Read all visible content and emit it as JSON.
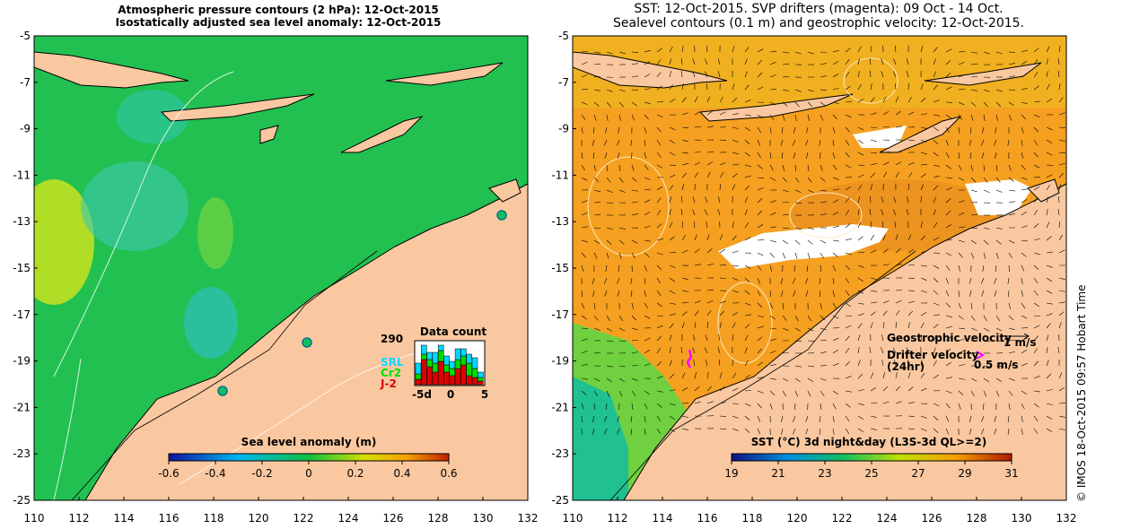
{
  "left_panel": {
    "title_line1": "Atmospheric pressure contours (2 hPa): 12-Oct-2015",
    "title_line2": "Isostatically adjusted sea level anomaly: 12-Oct-2015",
    "colorbar_label": "Sea level anomaly (m)",
    "colorbar_ticks": [
      "-0.6",
      "-0.4",
      "-0.2",
      "0",
      "0.2",
      "0.4",
      "0.6"
    ],
    "lat_ticks": [
      "-5",
      "-7",
      "-9",
      "-11",
      "-13",
      "-15",
      "-17",
      "-19",
      "-21",
      "-23",
      "-25"
    ],
    "lon_ticks": [
      "110",
      "112",
      "114",
      "116",
      "118",
      "120",
      "122",
      "124",
      "126",
      "128",
      "130",
      "132"
    ],
    "inset": {
      "title": "Data count",
      "max_count": "290",
      "satellites": [
        {
          "name": "SRL",
          "color": "#00d8ff"
        },
        {
          "name": "Cr2",
          "color": "#00dd00"
        },
        {
          "name": "J-2",
          "color": "#dd0000"
        }
      ],
      "x_ticks": [
        "-5d",
        "0",
        "5"
      ]
    }
  },
  "right_panel": {
    "title_line1": "SST: 12-Oct-2015. SVP drifters (magenta): 09 Oct - 14 Oct.",
    "title_line2": "Sealevel contours (0.1 m) and geostrophic velocity: 12-Oct-2015.",
    "colorbar_label": "SST (°C) 3d night&day (L3S-3d QL>=2)",
    "colorbar_ticks": [
      "19",
      "21",
      "23",
      "25",
      "27",
      "29",
      "31"
    ],
    "lat_ticks": [
      "-5",
      "-7",
      "-9",
      "-11",
      "-13",
      "-15",
      "-17",
      "-19",
      "-21",
      "-23",
      "-25"
    ],
    "lon_ticks": [
      "110",
      "112",
      "114",
      "116",
      "118",
      "120",
      "122",
      "124",
      "126",
      "128",
      "130",
      "132"
    ],
    "legend": {
      "geostrophic_label": "Geostrophic velocity",
      "geostrophic_scale": "1 m/s",
      "drifter_label_line1": "Drifter velocity",
      "drifter_label_line2": "(24hr)",
      "drifter_scale": "0.5 m/s"
    }
  },
  "side_credit": "© IMOS 18-Oct-2015 09:57 Hobart Time",
  "colors": {
    "land": "#fac8a0",
    "ocean_left": "#22c050",
    "ocean_right": "#f5a020",
    "drifter": "#ff00ff",
    "cloud": "#ffffff"
  }
}
